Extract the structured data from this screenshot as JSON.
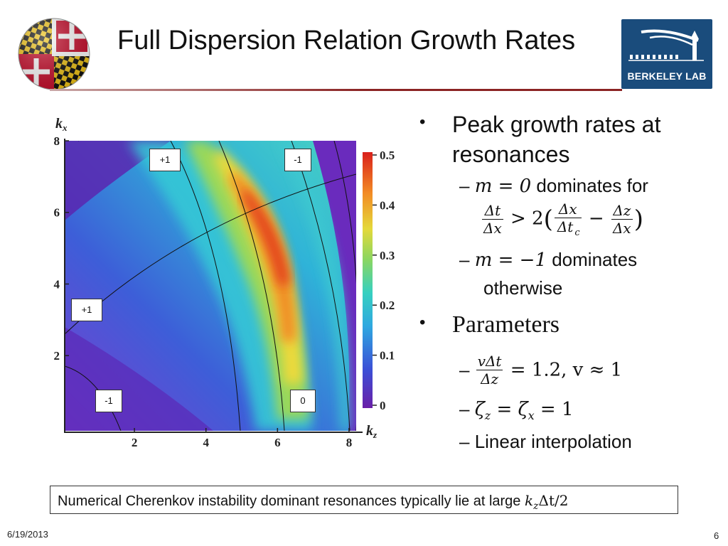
{
  "slide": {
    "title": "Full Dispersion Relation Growth Rates",
    "date": "6/19/2013",
    "page_number": "6",
    "footer_text": "Numerical Cherenkov instability dominant resonances typically lie at large ",
    "footer_math": "k",
    "footer_math_sub": "z",
    "footer_math_rest": "Δt/2"
  },
  "logos": {
    "berkeley_lab": "BERKELEY LAB"
  },
  "bullets": {
    "item1": "Peak growth rates at resonances",
    "item1_sub1_prefix": "– ",
    "item1_sub1_math": "m = 0",
    "item1_sub1_text": " dominates for",
    "frac1_num": "Δt",
    "frac1_den": "Δx",
    "gt": " > 2",
    "frac2_num": "Δx",
    "frac2_den": "Δt",
    "frac2_den_sub": "c",
    "minus": " − ",
    "frac3_num": "Δz",
    "frac3_den": "Δx",
    "item1_sub2_math": "m = −1",
    "item1_sub2_text": " dominates",
    "item1_sub2_text2": "otherwise",
    "item2": "Parameters",
    "frac4_num": "vΔt",
    "frac4_den": "Δz",
    "param1_rest": " = 1.2, v ≈ 1",
    "param2": "ζ",
    "param2_sub_z": "z",
    "param2_mid": " = ζ",
    "param2_sub_x": "x",
    "param2_rest": " = 1",
    "param3": "Linear interpolation"
  },
  "chart_data": {
    "type": "heatmap",
    "title": "",
    "xlabel": "k_z",
    "ylabel": "k_x",
    "xlim": [
      0.05,
      8.2
    ],
    "ylim": [
      -0.1,
      8.0
    ],
    "x_ticks": [
      "2",
      "4",
      "6",
      "8"
    ],
    "y_ticks": [
      "2",
      "4",
      "6",
      "8"
    ],
    "colorbar": {
      "ticks": [
        "0",
        "0.1",
        "0.2",
        "0.3",
        "0.4",
        "0.5"
      ],
      "range": [
        0,
        0.5
      ],
      "colormap": "rainbow"
    },
    "resonance_labels": [
      "+1",
      "-1",
      "+1",
      "-1",
      "0"
    ],
    "description_colors": {
      "low": "#5a1fa8",
      "mid": "#2fd2c8",
      "high": "#e53a1e"
    }
  }
}
